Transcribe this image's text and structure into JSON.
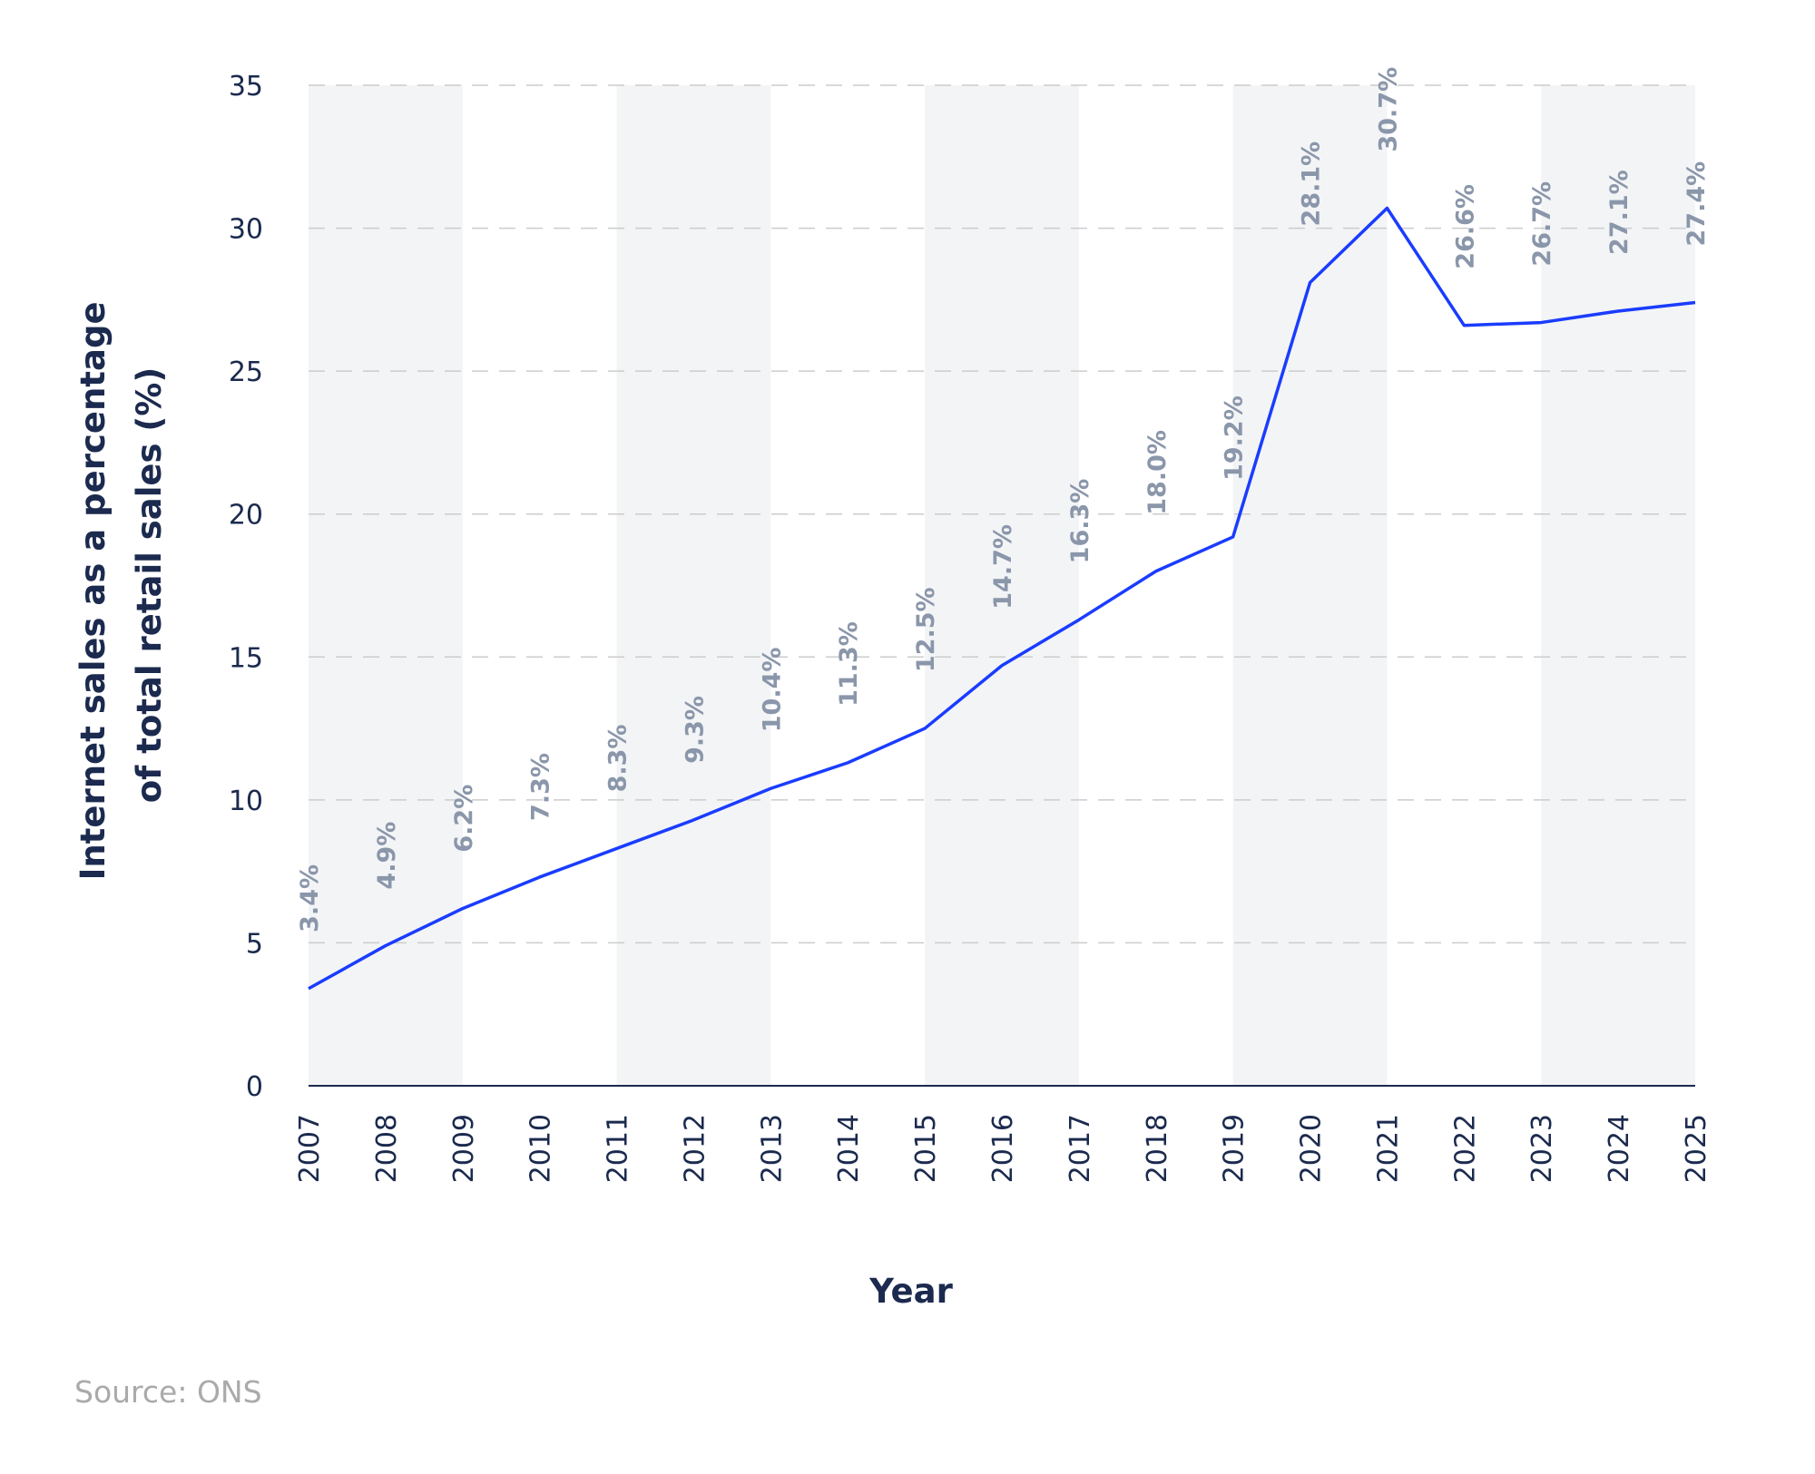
{
  "chart_data": {
    "type": "line",
    "title": "",
    "xlabel": "Year",
    "ylabel": "Internet sales as a percentage of total retail sales (%)",
    "ylabel_lines": [
      "Internet sales as a percentage",
      "of total retail sales (%)"
    ],
    "x": [
      "2007",
      "2008",
      "2009",
      "2010",
      "2011",
      "2012",
      "2013",
      "2014",
      "2015",
      "2016",
      "2017",
      "2018",
      "2019",
      "2020",
      "2021",
      "2022",
      "2023",
      "2024",
      "2025"
    ],
    "series": [
      {
        "values": [
          3.4,
          4.9,
          6.2,
          7.3,
          8.3,
          9.3,
          10.4,
          11.3,
          12.5,
          14.7,
          16.3,
          18.0,
          19.2,
          28.1,
          30.7,
          26.6,
          26.7,
          27.1,
          27.4
        ],
        "data_labels": [
          "3.4%",
          "4.9%",
          "6.2%",
          "7.3%",
          "8.3%",
          "9.3%",
          "10.4%",
          "11.3%",
          "12.5%",
          "14.7%",
          "16.3%",
          "18.0%",
          "19.2%",
          "28.1%",
          "30.7%",
          "26.6%",
          "26.7%",
          "27.1%",
          "27.4%"
        ],
        "color": "#1a3cff"
      }
    ],
    "ylim": [
      0,
      35
    ],
    "yticks": [
      0,
      5,
      10,
      15,
      20,
      25,
      30,
      35
    ],
    "grid": true,
    "shaded_bands": [
      [
        "2007",
        "2009"
      ],
      [
        "2011",
        "2013"
      ],
      [
        "2015",
        "2017"
      ],
      [
        "2019",
        "2021"
      ],
      [
        "2023",
        "2025"
      ]
    ],
    "colors": {
      "band": "#f3f4f6",
      "grid": "#cccccc",
      "axis": "#1b2a4e",
      "data_label": "#8a96aa"
    }
  },
  "source": "Source: ONS"
}
